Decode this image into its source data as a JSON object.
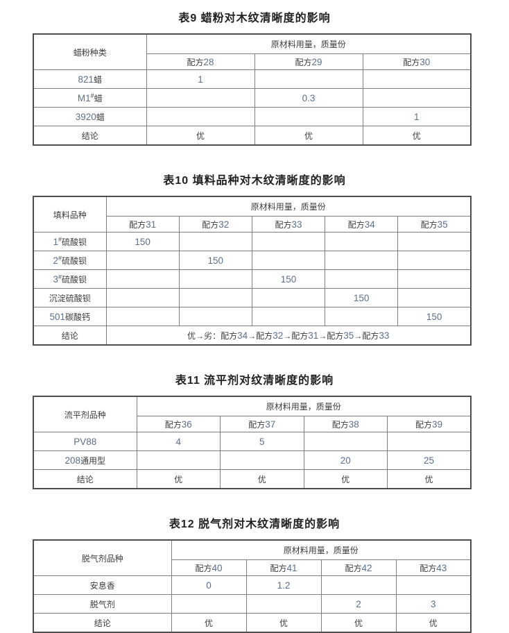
{
  "colors": {
    "text": "#3d3d3d",
    "number": "#5d6f89",
    "border_inner": "#7e7e7e",
    "border_outer": "#4d4d4d",
    "background": "#ffffff"
  },
  "tables": [
    {
      "id": "t9",
      "title": "表9 蜡粉对木纹清晰度的影响",
      "corner_label": "蜡粉种类",
      "span_header": "原材料用量，质量份",
      "formula_headers": [
        "配方28",
        "配方29",
        "配方30"
      ],
      "rows": [
        {
          "label": "821蜡",
          "values": [
            "1",
            "",
            ""
          ]
        },
        {
          "label": "M1#蜡",
          "values": [
            "",
            "0.3",
            ""
          ]
        },
        {
          "label": "3920蜡",
          "values": [
            "",
            "",
            "1"
          ]
        }
      ],
      "conclusion": {
        "label": "结论",
        "values": [
          "优",
          "优",
          "优"
        ]
      }
    },
    {
      "id": "t10",
      "title": "表10 填料品种对木纹清晰度的影响",
      "corner_label": "填料品种",
      "span_header": "原材料用量，质量份",
      "formula_headers": [
        "配方31",
        "配方32",
        "配方33",
        "配方34",
        "配方35"
      ],
      "rows": [
        {
          "label": "1#硫酸钡",
          "values": [
            "150",
            "",
            "",
            "",
            ""
          ]
        },
        {
          "label": "2#硫酸钡",
          "values": [
            "",
            "150",
            "",
            "",
            ""
          ]
        },
        {
          "label": "3#硫酸钡",
          "values": [
            "",
            "",
            "150",
            "",
            ""
          ]
        },
        {
          "label": "沉淀硫酸钡",
          "values": [
            "",
            "",
            "",
            "150",
            ""
          ]
        },
        {
          "label": "501碳酸钙",
          "values": [
            "",
            "",
            "",
            "",
            "150"
          ]
        }
      ],
      "conclusion": {
        "label": "结论",
        "span_text": "优→劣：配方34→配方32→配方31→配方35→配方33"
      }
    },
    {
      "id": "t11",
      "title": "表11 流平剂对纹清晰度的影响",
      "corner_label": "流平剂品种",
      "span_header": "原材料用量，质量份",
      "formula_headers": [
        "配方36",
        "配方37",
        "配方38",
        "配方39"
      ],
      "rows": [
        {
          "label": "PV88",
          "values": [
            "4",
            "5",
            "",
            ""
          ]
        },
        {
          "label": "208通用型",
          "values": [
            "",
            "",
            "20",
            "25"
          ]
        }
      ],
      "conclusion": {
        "label": "结论",
        "values": [
          "优",
          "优",
          "优",
          "优"
        ]
      }
    },
    {
      "id": "t12",
      "title": "表12 脱气剂对木纹清晰度的影响",
      "corner_label": "脱气剂品种",
      "span_header": "原材料用量，质量份",
      "formula_headers": [
        "配方40",
        "配方41",
        "配方42",
        "配方43"
      ],
      "rows": [
        {
          "label": "安息香",
          "values": [
            "0",
            "1.2",
            "",
            ""
          ]
        },
        {
          "label": "脱气剂",
          "values": [
            "",
            "",
            "2",
            "3"
          ]
        }
      ],
      "conclusion": {
        "label": "结论",
        "values": [
          "优",
          "优",
          "优",
          "优"
        ]
      }
    }
  ]
}
